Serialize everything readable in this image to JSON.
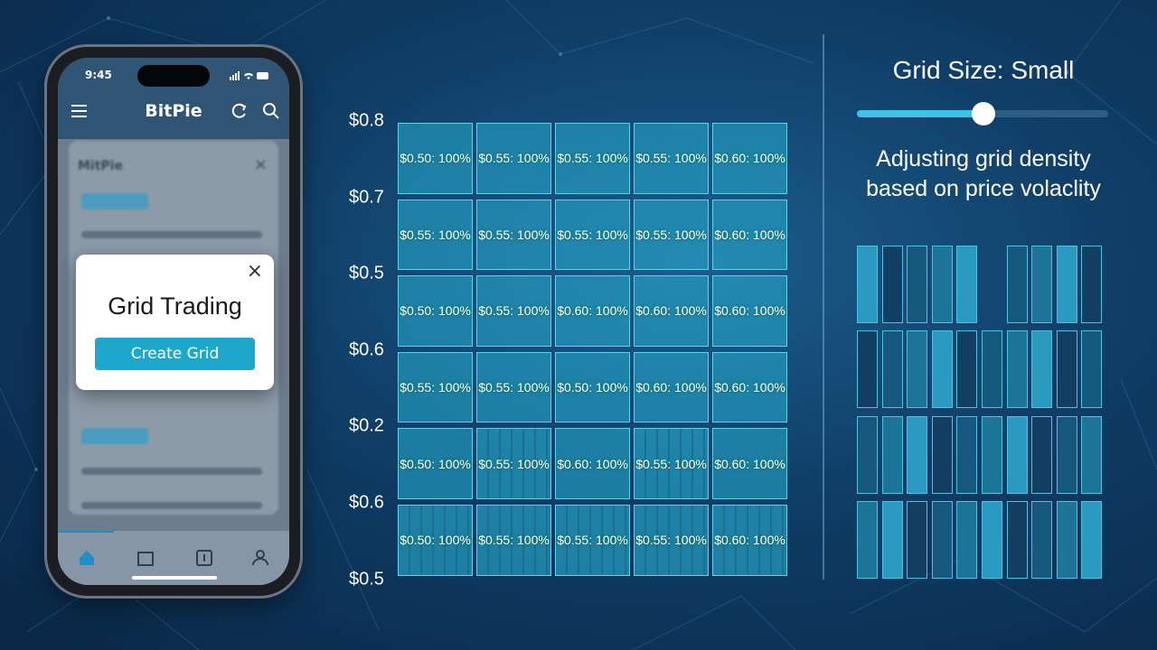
{
  "phone": {
    "status_time": "9:45",
    "app_title": "BitPie",
    "background_panel_title": "MitPie",
    "modal": {
      "title": "Grid Trading",
      "button": "Create Grid"
    }
  },
  "grid": {
    "y_labels": [
      "$0.8",
      "$0.7",
      "$0.5",
      "$0.6",
      "$0.2",
      "$0.6",
      "$0.5"
    ],
    "rows": [
      [
        "$0.50: 100%",
        "$0.55: 100%",
        "$0.55: 100%",
        "$0.55: 100%",
        "$0.60: 100%"
      ],
      [
        "$0.55: 100%",
        "$0.55: 100%",
        "$0.55: 100%",
        "$0.55: 100%",
        "$0.60: 100%"
      ],
      [
        "$0.50: 100%",
        "$0.55: 100%",
        "$0.60: 100%",
        "$0.60: 100%",
        "$0.60: 100%"
      ],
      [
        "$0.55: 100%",
        "$0.55: 100%",
        "$0.50: 100%",
        "$0.60: 100%",
        "$0.60: 100%"
      ],
      [
        "$0.50: 100%",
        "$0.55: 100%",
        "$0.60: 100%",
        "$0.55: 100%",
        "$0.60: 100%"
      ],
      [
        "$0.50: 100%",
        "$0.55: 100%",
        "$0.55: 100%",
        "$0.55: 100%",
        "$0.60: 100%"
      ]
    ]
  },
  "side": {
    "title": "Grid Size: Small",
    "caption": [
      "Adjusting grid density",
      "based on price volaclity"
    ]
  }
}
